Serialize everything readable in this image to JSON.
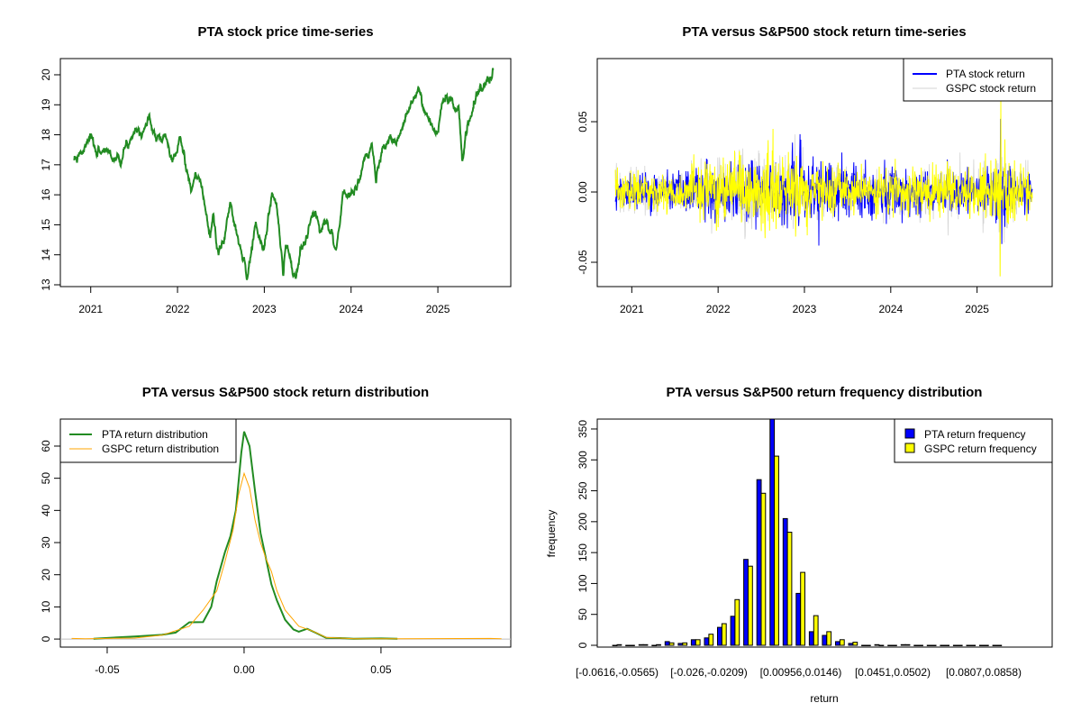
{
  "colors": {
    "price": "#228B22",
    "pta_ret": "#0000FF",
    "gspc_ret": "#FFFF00",
    "gspc_faint": "#D3D3D3",
    "pta_dens": "#228B22",
    "gspc_dens": "#FFA500",
    "zero_line": "#BEBEBE",
    "pta_bar": "#0000FF",
    "gspc_bar": "#FFFF00"
  },
  "chart_data": [
    {
      "type": "line",
      "title": "PTA stock price time-series",
      "xlabel": "",
      "ylabel": "",
      "xlim": [
        2020.65,
        2025.84
      ],
      "ylim": [
        12.94,
        20.54
      ],
      "x_ticks": [
        2021,
        2022,
        2023,
        2024,
        2025
      ],
      "x_tick_labels": [
        "2021",
        "2022",
        "2023",
        "2024",
        "2025"
      ],
      "y_ticks": [
        13,
        14,
        15,
        16,
        17,
        18,
        19,
        20
      ],
      "y_tick_labels": [
        "13",
        "14",
        "15",
        "16",
        "17",
        "18",
        "19",
        "20"
      ],
      "series": [
        {
          "name": "PTA price",
          "points": [
            [
              2020.81,
              17.15
            ],
            [
              2020.9,
              17.3
            ],
            [
              2020.99,
              17.9
            ],
            [
              2021.05,
              17.45
            ],
            [
              2021.2,
              17.5
            ],
            [
              2021.25,
              17.25
            ],
            [
              2021.35,
              17.3
            ],
            [
              2021.45,
              17.8
            ],
            [
              2021.5,
              18.3
            ],
            [
              2021.58,
              18.2
            ],
            [
              2021.66,
              18.5
            ],
            [
              2021.76,
              18.05
            ],
            [
              2021.86,
              18.0
            ],
            [
              2021.94,
              17.05
            ],
            [
              2022.03,
              17.9
            ],
            [
              2022.08,
              17.2
            ],
            [
              2022.16,
              16.1
            ],
            [
              2022.25,
              16.6
            ],
            [
              2022.3,
              15.8
            ],
            [
              2022.38,
              14.6
            ],
            [
              2022.41,
              15.4
            ],
            [
              2022.47,
              13.9
            ],
            [
              2022.54,
              14.6
            ],
            [
              2022.61,
              15.8
            ],
            [
              2022.69,
              14.7
            ],
            [
              2022.74,
              14.2
            ],
            [
              2022.8,
              13.3
            ],
            [
              2022.9,
              14.9
            ],
            [
              2022.995,
              14.1
            ],
            [
              2023.09,
              16.2
            ],
            [
              2023.16,
              15.2
            ],
            [
              2023.22,
              13.4
            ],
            [
              2023.25,
              14.4
            ],
            [
              2023.32,
              13.5
            ],
            [
              2023.36,
              13.2
            ],
            [
              2023.43,
              14.2
            ],
            [
              2023.58,
              15.3
            ],
            [
              2023.67,
              15.1
            ],
            [
              2023.73,
              15.2
            ],
            [
              2023.82,
              14.2
            ],
            [
              2023.91,
              15.9
            ],
            [
              2024.05,
              16.2
            ],
            [
              2024.13,
              16.8
            ],
            [
              2024.24,
              17.5
            ],
            [
              2024.29,
              16.5
            ],
            [
              2024.36,
              17.5
            ],
            [
              2024.49,
              17.7
            ],
            [
              2024.6,
              18.3
            ],
            [
              2024.68,
              18.9
            ],
            [
              2024.78,
              19.6
            ],
            [
              2024.84,
              18.9
            ],
            [
              2024.91,
              18.7
            ],
            [
              2024.98,
              18.1
            ],
            [
              2025.09,
              19.2
            ],
            [
              2025.17,
              19.05
            ],
            [
              2025.2,
              18.6
            ],
            [
              2025.24,
              18.9
            ],
            [
              2025.28,
              17.2
            ],
            [
              2025.31,
              17.9
            ],
            [
              2025.4,
              19.0
            ],
            [
              2025.51,
              19.7
            ],
            [
              2025.59,
              19.7
            ],
            [
              2025.64,
              20.2
            ]
          ]
        }
      ]
    },
    {
      "type": "line",
      "title": "PTA versus S&P500 stock return time-series",
      "xlim": [
        2020.6,
        2025.87
      ],
      "ylim": [
        -0.0673,
        0.0949
      ],
      "x_ticks": [
        2021,
        2022,
        2023,
        2024,
        2025
      ],
      "x_tick_labels": [
        "2021",
        "2022",
        "2023",
        "2024",
        "2025"
      ],
      "y_ticks": [
        -0.05,
        0,
        0.05
      ],
      "y_tick_labels": [
        "-0.05",
        "0.00",
        "0.05"
      ],
      "legend": {
        "position": "top-right",
        "entries": [
          "PTA stock return",
          "GSPC stock return"
        ]
      },
      "series": [
        {
          "name": "PTA stock return",
          "start": 2020.81,
          "end": 2025.64,
          "volatility": [
            [
              2020.8,
              0.006
            ],
            [
              2021.5,
              0.006
            ],
            [
              2022.0,
              0.009
            ],
            [
              2022.5,
              0.011
            ],
            [
              2023.0,
              0.012
            ],
            [
              2023.5,
              0.009
            ],
            [
              2024.0,
              0.009
            ],
            [
              2024.5,
              0.007
            ],
            [
              2025.0,
              0.008
            ],
            [
              2025.3,
              0.011
            ],
            [
              2025.64,
              0.006
            ]
          ],
          "events": [
            [
              2025.27,
              0.052
            ],
            [
              2025.285,
              -0.037
            ]
          ]
        },
        {
          "name": "GSPC stock return",
          "start": 2020.81,
          "end": 2025.64,
          "volatility": [
            [
              2020.8,
              0.008
            ],
            [
              2021.5,
              0.006
            ],
            [
              2022.0,
              0.011
            ],
            [
              2022.5,
              0.014
            ],
            [
              2023.0,
              0.011
            ],
            [
              2023.5,
              0.007
            ],
            [
              2024.0,
              0.007
            ],
            [
              2024.5,
              0.008
            ],
            [
              2025.0,
              0.008
            ],
            [
              2025.3,
              0.013
            ],
            [
              2025.64,
              0.006
            ]
          ],
          "events": [
            [
              2025.275,
              0.065
            ],
            [
              2025.265,
              -0.06
            ]
          ]
        }
      ]
    },
    {
      "type": "line",
      "title": "PTA versus S&P500 stock return distribution",
      "xlim": [
        -0.0671,
        0.0974
      ],
      "ylim": [
        -2.5,
        68.4
      ],
      "x_ticks": [
        -0.05,
        0,
        0.05
      ],
      "x_tick_labels": [
        "-0.05",
        "0.00",
        "0.05"
      ],
      "y_ticks": [
        0,
        10,
        20,
        30,
        40,
        50,
        60
      ],
      "y_tick_labels": [
        "0",
        "10",
        "20",
        "30",
        "40",
        "50",
        "60"
      ],
      "legend": {
        "position": "top-left",
        "entries": [
          "PTA return distribution",
          "GSPC return distribution"
        ]
      },
      "series": [
        {
          "name": "PTA return distribution",
          "points": [
            [
              -0.055,
              0.1
            ],
            [
              -0.04,
              0.8
            ],
            [
              -0.03,
              1.3
            ],
            [
              -0.025,
              2
            ],
            [
              -0.02,
              5.2
            ],
            [
              -0.015,
              5.3
            ],
            [
              -0.012,
              10
            ],
            [
              -0.01,
              18
            ],
            [
              -0.007,
              27
            ],
            [
              -0.005,
              32
            ],
            [
              -0.003,
              40
            ],
            [
              -0.001,
              58
            ],
            [
              0,
              64.5
            ],
            [
              0.002,
              60
            ],
            [
              0.004,
              46
            ],
            [
              0.006,
              33
            ],
            [
              0.008,
              25
            ],
            [
              0.01,
              17
            ],
            [
              0.012,
              12
            ],
            [
              0.015,
              6
            ],
            [
              0.018,
              3
            ],
            [
              0.02,
              2.3
            ],
            [
              0.023,
              3.2
            ],
            [
              0.026,
              2
            ],
            [
              0.03,
              0.4
            ],
            [
              0.035,
              0.3
            ],
            [
              0.04,
              0.1
            ],
            [
              0.05,
              0.2
            ],
            [
              0.056,
              0.1
            ]
          ]
        },
        {
          "name": "GSPC return distribution",
          "points": [
            [
              -0.063,
              0.2
            ],
            [
              -0.058,
              0.1
            ],
            [
              -0.04,
              0.3
            ],
            [
              -0.03,
              1.2
            ],
            [
              -0.02,
              4
            ],
            [
              -0.015,
              9
            ],
            [
              -0.01,
              15
            ],
            [
              -0.007,
              24
            ],
            [
              -0.004,
              34
            ],
            [
              -0.002,
              45
            ],
            [
              0,
              51.5
            ],
            [
              0.002,
              47
            ],
            [
              0.004,
              37
            ],
            [
              0.006,
              30
            ],
            [
              0.008,
              25
            ],
            [
              0.01,
              21
            ],
            [
              0.012,
              15
            ],
            [
              0.015,
              9
            ],
            [
              0.02,
              4
            ],
            [
              0.025,
              2.5
            ],
            [
              0.03,
              0.5
            ],
            [
              0.04,
              0.1
            ],
            [
              0.056,
              0.1
            ],
            [
              0.09,
              0.2
            ],
            [
              0.094,
              0.1
            ]
          ]
        }
      ]
    },
    {
      "type": "bar",
      "title": "PTA versus S&P500 return frequency distribution",
      "xlabel": "return",
      "ylabel": "frequency",
      "ylim": [
        0,
        366
      ],
      "y_ticks": [
        0,
        50,
        100,
        150,
        200,
        250,
        300,
        350
      ],
      "y_tick_labels": [
        "0",
        "50",
        "100",
        "150",
        "200",
        "250",
        "300",
        "350"
      ],
      "category_labels_shown": [
        {
          "index": 0,
          "label": "[-0.0616,-0.0565)"
        },
        {
          "index": 7,
          "label": "[-0.026,-0.0209)"
        },
        {
          "index": 14,
          "label": "[0.00956,0.0146)"
        },
        {
          "index": 21,
          "label": "[0.0451,0.0502)"
        },
        {
          "index": 28,
          "label": "[0.0807,0.0858)"
        }
      ],
      "legend": {
        "position": "top-right",
        "entries": [
          "PTA return frequency",
          "GSPC return frequency"
        ]
      },
      "series": [
        {
          "name": "PTA return frequency",
          "values": [
            0,
            0,
            1,
            0,
            6,
            3,
            9,
            12,
            29,
            47,
            139,
            268,
            370,
            205,
            84,
            22,
            16,
            6,
            3,
            0,
            1,
            0,
            1,
            0,
            0,
            0,
            0,
            0,
            0,
            0
          ]
        },
        {
          "name": "GSPC return frequency",
          "values": [
            1,
            0,
            1,
            1,
            4,
            4,
            9,
            18,
            35,
            74,
            128,
            246,
            306,
            183,
            118,
            48,
            22,
            9,
            5,
            0,
            0,
            0,
            1,
            0,
            0,
            0,
            0,
            0,
            0,
            0
          ]
        }
      ]
    }
  ]
}
